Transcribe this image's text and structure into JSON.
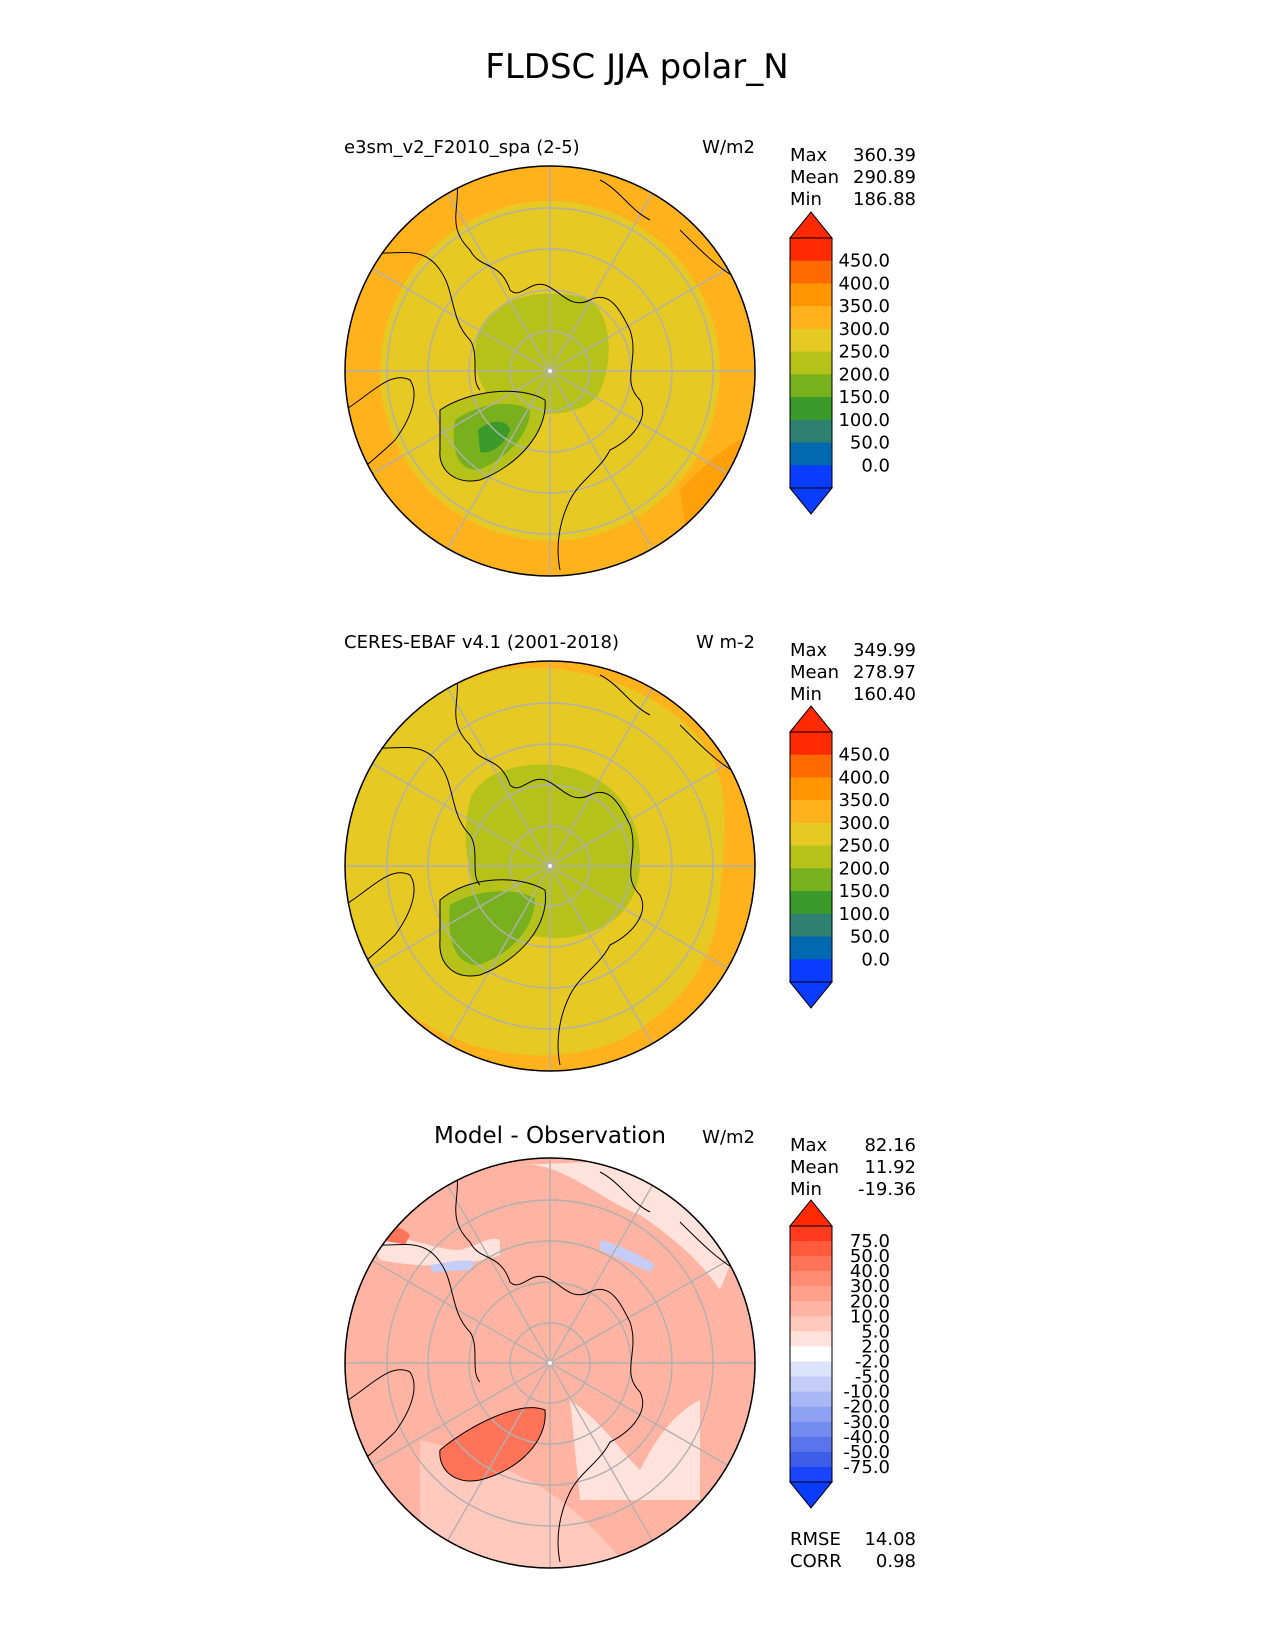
{
  "figure": {
    "title": "FLDSC JJA polar_N"
  },
  "panels": [
    {
      "id": "model",
      "left_title": "e3sm_v2_F2010_spa (2-5)",
      "center_title": "",
      "units": "W/m2",
      "stats": [
        {
          "label": "Max",
          "value": "360.39"
        },
        {
          "label": "Mean",
          "value": "290.89"
        },
        {
          "label": "Min",
          "value": "186.88"
        }
      ]
    },
    {
      "id": "obs",
      "left_title": "CERES-EBAF v4.1 (2001-2018)",
      "center_title": "",
      "units": "W m-2",
      "stats": [
        {
          "label": "Max",
          "value": "349.99"
        },
        {
          "label": "Mean",
          "value": "278.97"
        },
        {
          "label": "Min",
          "value": "160.40"
        }
      ]
    },
    {
      "id": "diff",
      "left_title": "",
      "center_title": "Model - Observation",
      "units": "W/m2",
      "stats": [
        {
          "label": "Max",
          "value": "82.16"
        },
        {
          "label": "Mean",
          "value": "11.92"
        },
        {
          "label": "Min",
          "value": "-19.36"
        }
      ],
      "extra_stats": [
        {
          "label": "RMSE",
          "value": "14.08"
        },
        {
          "label": "CORR",
          "value": "0.98"
        }
      ]
    }
  ],
  "colorbars": {
    "field": {
      "labels": [
        "450.0",
        "400.0",
        "350.0",
        "300.0",
        "250.0",
        "200.0",
        "150.0",
        "100.0",
        "50.0",
        "0.0"
      ],
      "colors_top_to_bottom": [
        "#ff2a00",
        "#ff6a00",
        "#ff9500",
        "#ffb21c",
        "#e6c922",
        "#b5c21a",
        "#78b01e",
        "#3a9a2a",
        "#2e8070",
        "#0069b0",
        "#0a3cff"
      ],
      "extend_top_color": "#ff2a00",
      "extend_bottom_color": "#0a3cff"
    },
    "diff": {
      "labels": [
        "75.0",
        "50.0",
        "40.0",
        "30.0",
        "20.0",
        "10.0",
        "5.0",
        "2.0",
        "-2.0",
        "-5.0",
        "-10.0",
        "-20.0",
        "-30.0",
        "-40.0",
        "-50.0",
        "-75.0"
      ],
      "colors_top_to_bottom": [
        "#ff3a1f",
        "#ff5a3c",
        "#ff7358",
        "#ff8c72",
        "#ffa08a",
        "#ffb3a2",
        "#ffc9bd",
        "#ffe2db",
        "#ffffff",
        "#dde3fb",
        "#c3cdf8",
        "#a9b7f5",
        "#8fa1f2",
        "#748bef",
        "#5a75ec",
        "#3e5ee9",
        "#1a44ff"
      ],
      "extend_top_color": "#ff2a00",
      "extend_bottom_color": "#0a3cff"
    }
  },
  "map_colors": {
    "model_outer": "#ffb21c",
    "model_inner": "#e6c922",
    "model_arctic": "#b5c21a",
    "model_greenland": "#78b01e",
    "model_greenland_core": "#3a9a2a",
    "obs_outer": "#ffb21c",
    "obs_inner": "#e6c922",
    "obs_arctic": "#b5c21a",
    "obs_greenland": "#78b01e",
    "diff_base": "#ffb3a2",
    "diff_light": "#ffc9bd",
    "diff_strong": "#ff7358",
    "diff_pale": "#ffe2db",
    "diff_blue": "#c3cdf8",
    "grid": "#b0b0b0",
    "coast": "#000000"
  }
}
